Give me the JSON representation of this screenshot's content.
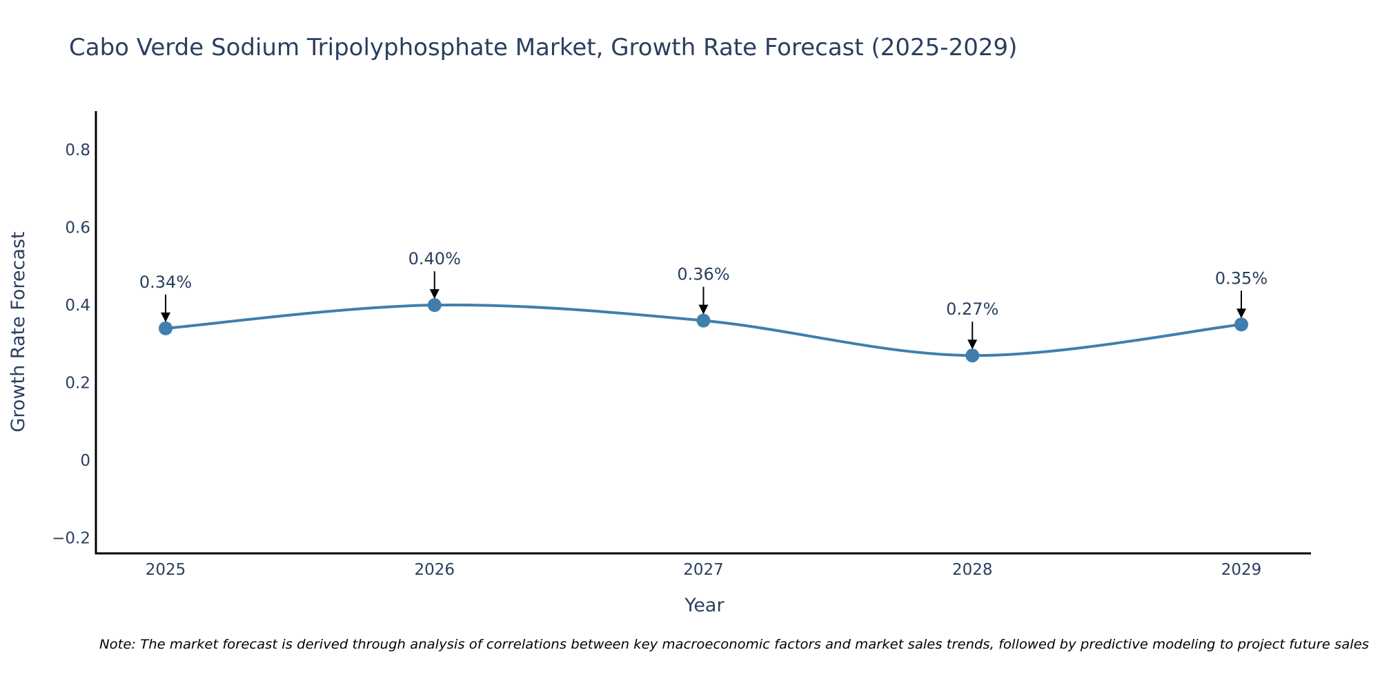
{
  "chart_data": {
    "type": "line",
    "title": "Cabo Verde Sodium Tripolyphosphate Market, Growth Rate Forecast (2025-2029)",
    "xlabel": "Year",
    "ylabel": "Growth Rate Forecast",
    "categories": [
      "2025",
      "2026",
      "2027",
      "2028",
      "2029"
    ],
    "series": [
      {
        "name": "Growth Rate Forecast",
        "values": [
          0.34,
          0.4,
          0.36,
          0.27,
          0.35
        ],
        "labels": [
          "0.34%",
          "0.40%",
          "0.36%",
          "0.27%",
          "0.35%"
        ]
      }
    ],
    "ylim": [
      -0.24,
      0.9
    ],
    "yticks": [
      -0.2,
      0,
      0.2,
      0.4,
      0.6,
      0.8
    ],
    "ytick_labels": [
      "−0.2",
      "0",
      "0.2",
      "0.4",
      "0.6",
      "0.8"
    ],
    "grid": false,
    "line_color": "#3f7fad",
    "note": "Note: The market forecast is derived through analysis of correlations between key macroeconomic factors and market sales trends, followed by predictive modeling to project future sales"
  }
}
